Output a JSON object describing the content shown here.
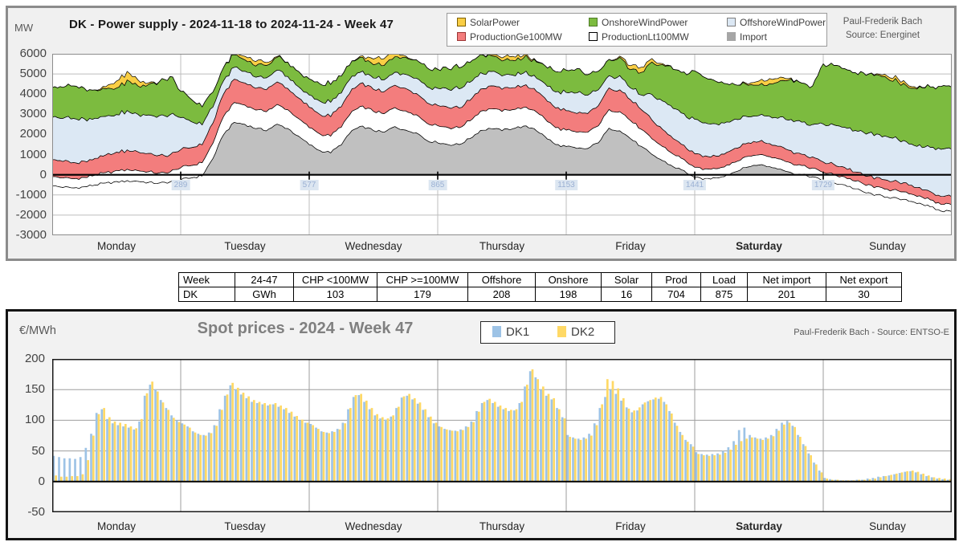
{
  "top_chart": {
    "unit_label": "MW",
    "title": "DK - Power supply - 2024-11-18 to 2024-11-24 - Week 47",
    "attribution": {
      "author": "Paul-Frederik Bach",
      "source": "Source: Energinet"
    },
    "legend": [
      {
        "label": "SolarPower",
        "color": "#F9CE45",
        "border": "#7f6000"
      },
      {
        "label": "OnshoreWindPower",
        "color": "#7CBB3F",
        "border": "#4e7a28"
      },
      {
        "label": "OffshoreWindPower",
        "color": "#DCE8F4",
        "border": "#7f7f7f"
      },
      {
        "label": "ProductionGe100MW",
        "color": "#F37D7D",
        "border": "#9c3535"
      },
      {
        "label": "ProductionLt100MW",
        "color": "#FFFFFF",
        "border": "#000000"
      },
      {
        "label": "Import",
        "color": "#A6A6A6",
        "border": "#A6A6A6"
      }
    ],
    "y_ticks": [
      "6000",
      "5000",
      "4000",
      "3000",
      "2000",
      "1000",
      "0",
      "-1000",
      "-2000",
      "-3000"
    ],
    "faint_x_ticks": [
      "289",
      "577",
      "865",
      "1153",
      "1441",
      "1729"
    ]
  },
  "summary_table": {
    "headers": [
      "Week",
      "24-47",
      "CHP <100MW",
      "CHP >=100MW",
      "Offshore",
      "Onshore",
      "Solar",
      "Prod",
      "Load",
      "Net import",
      "Net export"
    ],
    "rows": [
      [
        "DK",
        "GWh",
        "103",
        "179",
        "208",
        "198",
        "16",
        "704",
        "875",
        "201",
        "30"
      ]
    ]
  },
  "bottom_chart": {
    "unit_label": "€/MWh",
    "title": "Spot prices - 2024 - Week 47",
    "attribution": "Paul-Frederik Bach - Source: ENTSO-E",
    "legend": [
      {
        "label": "DK1",
        "color": "#9DC3E6"
      },
      {
        "label": "DK2",
        "color": "#FFD966"
      }
    ],
    "y_ticks": [
      "200",
      "150",
      "100",
      "50",
      "0",
      "-50"
    ]
  },
  "day_labels": [
    "Monday",
    "Tuesday",
    "Wednesday",
    "Thursday",
    "Friday",
    "Saturday",
    "Sunday"
  ],
  "chart_data": [
    {
      "type": "area",
      "stacked": true,
      "title": "DK - Power supply - 2024-11-18 to 2024-11-24 - Week 47",
      "ylabel": "MW",
      "ylim": [
        -3000,
        6000
      ],
      "grid": true,
      "legend_position": "top",
      "x_unit": "Mon 2024-11-18 00:00 to Sun 2024-11-24 24:00, 2-hour sample resolution, 12 points per day",
      "categories": [
        "Monday",
        "Tuesday",
        "Wednesday",
        "Thursday",
        "Friday",
        "Saturday",
        "Sunday"
      ],
      "series": [
        {
          "name": "Import",
          "color": "#C0C0C0",
          "values": [
            -550,
            -620,
            -650,
            -600,
            -500,
            -420,
            -350,
            -300,
            -320,
            -380,
            -420,
            -350,
            -250,
            -150,
            -50,
            800,
            2000,
            2600,
            2500,
            2300,
            2200,
            2500,
            2300,
            1900,
            1500,
            1200,
            1100,
            1500,
            2200,
            2400,
            2200,
            2100,
            2400,
            2200,
            2100,
            1700,
            1600,
            1500,
            1500,
            1800,
            2200,
            2300,
            2200,
            2300,
            2400,
            2300,
            1900,
            1500,
            1400,
            1300,
            1300,
            1600,
            2300,
            2200,
            1800,
            1400,
            1000,
            700,
            400,
            200,
            -150,
            -200,
            -150,
            0,
            200,
            400,
            500,
            400,
            300,
            100,
            0,
            -100,
            -300,
            -400,
            -500,
            -700,
            -900,
            -1000,
            -1100,
            -1200,
            -1300,
            -1400,
            -1600,
            -1800
          ]
        },
        {
          "name": "ProductionLt100MW",
          "color": "#FFFFFF",
          "values": [
            480,
            460,
            450,
            460,
            480,
            520,
            550,
            560,
            540,
            520,
            500,
            490,
            600,
            620,
            650,
            750,
            900,
            980,
            950,
            920,
            950,
            970,
            920,
            880,
            850,
            830,
            820,
            880,
            950,
            1000,
            950,
            920,
            950,
            960,
            900,
            860,
            850,
            840,
            840,
            880,
            950,
            980,
            960,
            940,
            930,
            920,
            880,
            840,
            820,
            800,
            800,
            850,
            920,
            950,
            900,
            850,
            780,
            700,
            620,
            560,
            500,
            480,
            470,
            480,
            500,
            520,
            510,
            500,
            490,
            470,
            450,
            430,
            420,
            400,
            390,
            380,
            380,
            390,
            390,
            380,
            370,
            360,
            350,
            340
          ]
        },
        {
          "name": "ProductionGe100MW",
          "color": "#F37D7D",
          "values": [
            850,
            820,
            800,
            800,
            830,
            880,
            920,
            950,
            930,
            900,
            880,
            860,
            900,
            880,
            900,
            1000,
            1100,
            1150,
            1100,
            1080,
            1100,
            1120,
            1060,
            1020,
            1000,
            980,
            970,
            1020,
            1100,
            1150,
            1100,
            1080,
            1100,
            1110,
            1050,
            1010,
            1000,
            990,
            990,
            1020,
            1100,
            1130,
            1110,
            1090,
            1080,
            1070,
            1020,
            980,
            960,
            940,
            940,
            990,
            1060,
            1090,
            1040,
            990,
            920,
            840,
            760,
            700,
            680,
            650,
            630,
            640,
            660,
            680,
            670,
            650,
            630,
            600,
            570,
            540,
            520,
            500,
            480,
            460,
            450,
            450,
            440,
            430,
            420,
            410,
            400,
            390
          ]
        },
        {
          "name": "OffshoreWindPower",
          "color": "#DCE8F4",
          "values": [
            2100,
            2150,
            2200,
            2100,
            2000,
            1900,
            1850,
            1950,
            1850,
            1900,
            1950,
            2000,
            1600,
            1300,
            1000,
            800,
            650,
            600,
            580,
            560,
            580,
            600,
            580,
            560,
            600,
            650,
            700,
            680,
            620,
            580,
            560,
            600,
            650,
            700,
            750,
            800,
            850,
            900,
            950,
            900,
            800,
            700,
            650,
            620,
            620,
            650,
            700,
            800,
            900,
            1000,
            900,
            800,
            600,
            700,
            600,
            700,
            1250,
            1400,
            1500,
            1550,
            1700,
            1650,
            1600,
            1500,
            1400,
            1300,
            1300,
            1350,
            1450,
            1550,
            1600,
            1600,
            1900,
            1950,
            2000,
            2050,
            2100,
            2150,
            2150,
            2100,
            2050,
            2100,
            2200,
            2350
          ]
        },
        {
          "name": "OnshoreWindPower",
          "color": "#7CBB3F",
          "values": [
            1500,
            1550,
            1600,
            1500,
            1400,
            1350,
            1300,
            1500,
            1400,
            1500,
            1700,
            1900,
            1300,
            1100,
            900,
            750,
            650,
            600,
            580,
            560,
            600,
            650,
            700,
            750,
            800,
            850,
            900,
            850,
            750,
            700,
            680,
            720,
            780,
            850,
            900,
            950,
            950,
            1000,
            1050,
            1000,
            900,
            800,
            750,
            720,
            750,
            800,
            900,
            1000,
            1100,
            1200,
            1000,
            900,
            800,
            900,
            900,
            1100,
            1600,
            1800,
            1950,
            2050,
            2400,
            2250,
            2100,
            1900,
            1700,
            1550,
            1500,
            1600,
            1800,
            2000,
            1950,
            1900,
            3000,
            2950,
            2900,
            2850,
            2900,
            2950,
            2900,
            2850,
            2800,
            2900,
            3000,
            3100
          ]
        },
        {
          "name": "SolarPower",
          "color": "#F9CE45",
          "values": [
            0,
            0,
            0,
            0,
            0,
            100,
            350,
            420,
            300,
            80,
            0,
            0,
            0,
            0,
            0,
            0,
            0,
            60,
            180,
            220,
            150,
            40,
            0,
            0,
            0,
            0,
            0,
            0,
            0,
            80,
            280,
            340,
            240,
            60,
            0,
            0,
            0,
            0,
            0,
            0,
            0,
            50,
            150,
            200,
            130,
            40,
            0,
            0,
            0,
            0,
            0,
            0,
            0,
            60,
            200,
            260,
            170,
            50,
            0,
            0,
            0,
            0,
            0,
            0,
            0,
            60,
            200,
            250,
            170,
            50,
            0,
            0,
            0,
            0,
            0,
            0,
            0,
            40,
            120,
            160,
            100,
            30,
            0,
            0
          ]
        }
      ]
    },
    {
      "type": "bar",
      "title": "Spot prices - 2024 - Week 47",
      "ylabel": "€/MWh",
      "ylim": [
        -50,
        200
      ],
      "grid": true,
      "legend_position": "top",
      "x_unit": "hourly, Monday to Sunday, 24 values per day",
      "categories": [
        "Monday",
        "Tuesday",
        "Wednesday",
        "Thursday",
        "Friday",
        "Saturday",
        "Sunday"
      ],
      "series": [
        {
          "name": "DK1",
          "color": "#9DC3E6",
          "values": [
            42,
            40,
            38,
            38,
            37,
            40,
            55,
            78,
            112,
            118,
            102,
            95,
            92,
            90,
            88,
            85,
            98,
            140,
            158,
            150,
            133,
            120,
            108,
            100,
            95,
            90,
            82,
            78,
            76,
            80,
            92,
            118,
            140,
            157,
            150,
            142,
            136,
            130,
            128,
            126,
            124,
            126,
            122,
            118,
            112,
            106,
            100,
            96,
            94,
            88,
            82,
            80,
            82,
            86,
            96,
            118,
            138,
            141,
            130,
            118,
            108,
            103,
            101,
            106,
            120,
            137,
            140,
            134,
            127,
            117,
            105,
            95,
            90,
            86,
            84,
            83,
            85,
            90,
            98,
            115,
            128,
            133,
            128,
            122,
            118,
            115,
            116,
            128,
            155,
            180,
            170,
            150,
            140,
            134,
            120,
            105,
            76,
            72,
            70,
            72,
            78,
            95,
            120,
            138,
            150,
            143,
            132,
            121,
            113,
            116,
            126,
            131,
            134,
            135,
            130,
            115,
            96,
            81,
            68,
            61,
            48,
            45,
            44,
            45,
            46,
            50,
            56,
            66,
            84,
            88,
            76,
            72,
            70,
            72,
            76,
            86,
            96,
            99,
            91,
            76,
            61,
            46,
            31,
            18,
            6,
            4,
            3,
            2,
            2,
            2,
            3,
            3,
            5,
            6,
            8,
            9,
            10,
            12,
            14,
            16,
            17,
            15,
            12,
            9,
            7,
            5,
            4,
            3
          ]
        },
        {
          "name": "DK2",
          "color": "#FFD966",
          "values": [
            10,
            8,
            8,
            9,
            9,
            12,
            35,
            75,
            110,
            120,
            105,
            98,
            96,
            94,
            90,
            87,
            102,
            144,
            163,
            147,
            129,
            117,
            104,
            97,
            93,
            88,
            80,
            76,
            75,
            79,
            91,
            117,
            142,
            161,
            153,
            145,
            139,
            133,
            130,
            128,
            126,
            128,
            124,
            120,
            114,
            107,
            101,
            96,
            92,
            86,
            81,
            79,
            81,
            85,
            95,
            120,
            141,
            143,
            132,
            120,
            110,
            105,
            103,
            108,
            122,
            139,
            143,
            136,
            129,
            118,
            106,
            96,
            89,
            85,
            83,
            82,
            84,
            89,
            97,
            114,
            130,
            135,
            130,
            124,
            120,
            117,
            118,
            130,
            158,
            183,
            167,
            155,
            143,
            136,
            118,
            103,
            73,
            70,
            68,
            70,
            75,
            92,
            126,
            167,
            164,
            152,
            136,
            119,
            116,
            121,
            129,
            133,
            137,
            138,
            126,
            111,
            91,
            76,
            65,
            57,
            45,
            43,
            42,
            43,
            44,
            47,
            52,
            60,
            66,
            70,
            72,
            70,
            68,
            70,
            74,
            83,
            93,
            96,
            89,
            73,
            58,
            43,
            28,
            15,
            5,
            3,
            3,
            2,
            2,
            2,
            3,
            3,
            4,
            5,
            7,
            9,
            11,
            13,
            15,
            17,
            18,
            16,
            13,
            10,
            7,
            6,
            5,
            4
          ]
        }
      ]
    }
  ]
}
